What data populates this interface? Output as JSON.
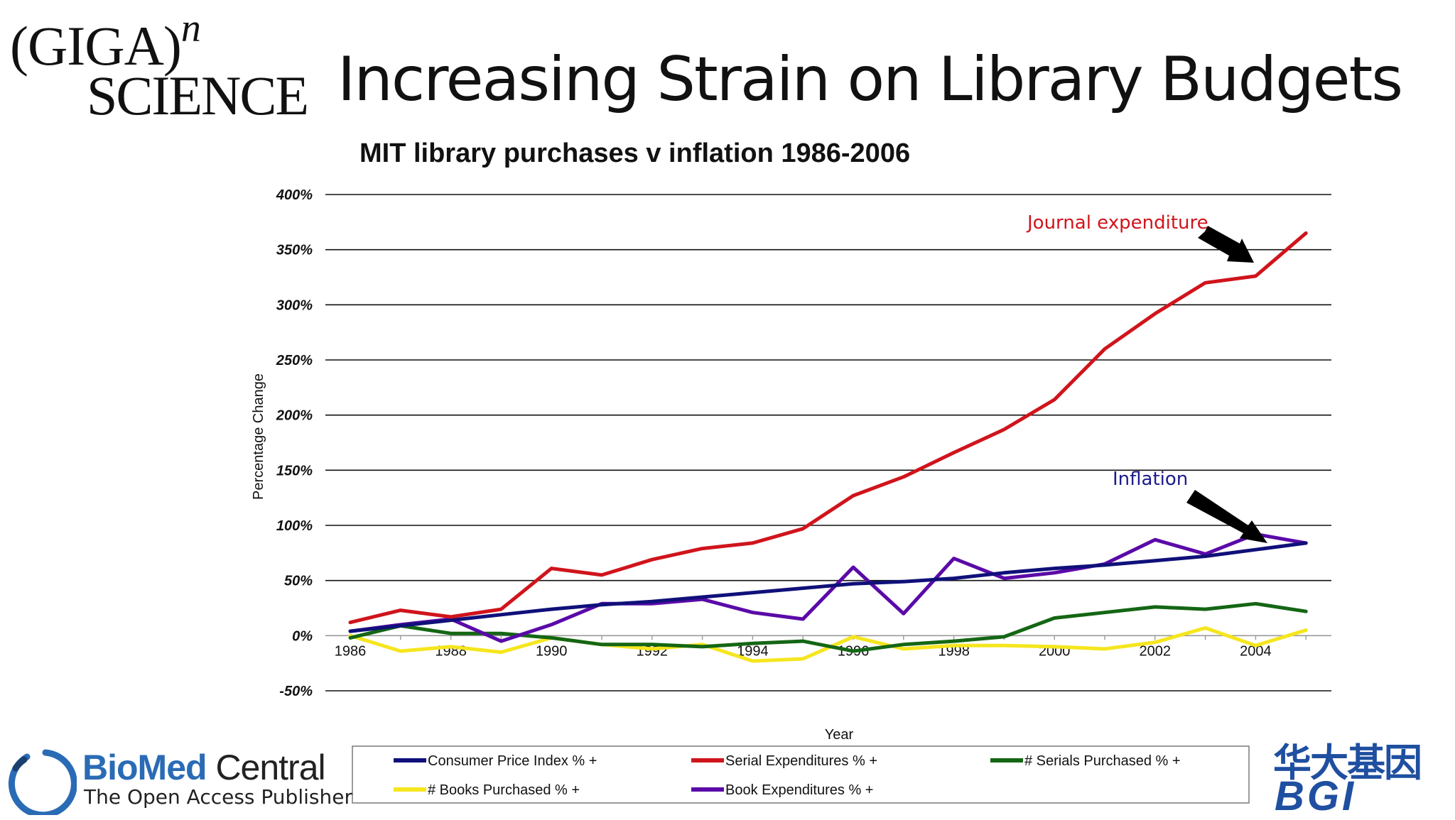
{
  "slide": {
    "title": "Increasing Strain on Library Budgets"
  },
  "logos": {
    "giga_top": "(GIGA)",
    "giga_sup": "n",
    "giga_bottom": "SCIENCE",
    "biomed_name_bold": "BioMed",
    "biomed_name_regular": " Central",
    "biomed_tagline": "The Open Access Publisher",
    "bgi_chinese": "华大基因",
    "bgi_english": "BGI"
  },
  "annotations": {
    "journal": {
      "text": "Journal expenditure",
      "color": "#d0141c"
    },
    "inflation": {
      "text": "Inflation",
      "color": "#1c1c8c"
    }
  },
  "chart_data": {
    "type": "line",
    "title": "MIT library purchases v inflation 1986-2006",
    "xlabel": "Year",
    "ylabel": "Percentage Change",
    "ylim": [
      -50,
      400
    ],
    "yticks": [
      400,
      350,
      300,
      250,
      200,
      150,
      100,
      50,
      0,
      -50
    ],
    "ytick_labels": [
      "400%",
      "350%",
      "300%",
      "250%",
      "200%",
      "150%",
      "100%",
      "50%",
      "0%",
      "-50%"
    ],
    "xticks": [
      1986,
      1988,
      1990,
      1992,
      1994,
      1996,
      1998,
      2000,
      2002,
      2004
    ],
    "xtick_labels": [
      "1986",
      "1988",
      "1990",
      "1992",
      "1994",
      "1996",
      "1998",
      "2000",
      "2002",
      "2004"
    ],
    "x": [
      1986,
      1987,
      1988,
      1989,
      1990,
      1991,
      1992,
      1993,
      1994,
      1995,
      1996,
      1997,
      1998,
      1999,
      2000,
      2001,
      2002,
      2003,
      2004,
      2005
    ],
    "grid": true,
    "legend_position": "bottom",
    "series": [
      {
        "name": "Consumer Price Index % +",
        "color": "#10107a",
        "values": [
          4,
          9,
          14,
          19,
          24,
          28,
          31,
          35,
          39,
          43,
          47,
          49,
          52,
          57,
          61,
          64,
          68,
          72,
          78,
          84
        ]
      },
      {
        "name": "Serial Expenditures % +",
        "color": "#d0141c",
        "values": [
          12,
          23,
          17,
          24,
          61,
          55,
          69,
          79,
          84,
          97,
          127,
          144,
          166,
          187,
          214,
          260,
          292,
          320,
          326,
          365
        ]
      },
      {
        "name": "# Serials Purchased % +",
        "color": "#146614",
        "values": [
          -2,
          9,
          2,
          2,
          -2,
          -8,
          -8,
          -10,
          -7,
          -5,
          -14,
          -8,
          -5,
          -1,
          16,
          21,
          26,
          24,
          29,
          22
        ]
      },
      {
        "name": "# Books Purchased % +",
        "color": "#f5e61e",
        "values": [
          0,
          -14,
          -10,
          -15,
          -2,
          -8,
          -12,
          -8,
          -23,
          -21,
          -1,
          -12,
          -9,
          -9,
          -10,
          -12,
          -6,
          7,
          -9,
          5
        ]
      },
      {
        "name": "Book Expenditures % +",
        "color": "#5a0aa8",
        "values": [
          4,
          10,
          15,
          -5,
          10,
          29,
          29,
          33,
          21,
          15,
          62,
          20,
          70,
          52,
          57,
          65,
          87,
          74,
          92,
          84
        ]
      }
    ]
  }
}
